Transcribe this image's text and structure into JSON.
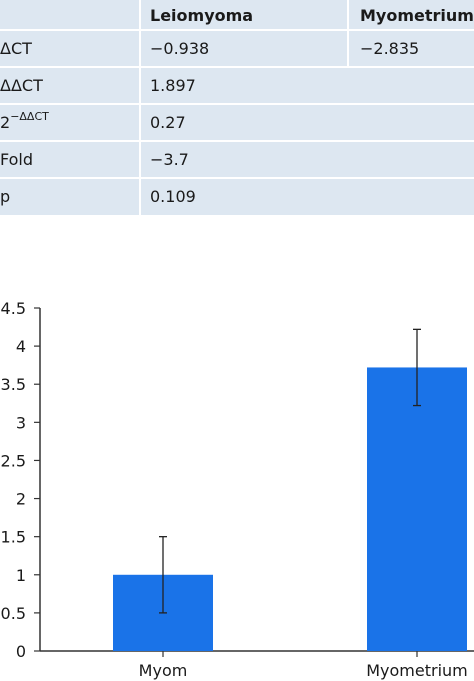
{
  "table": {
    "headers": [
      "",
      "Leiomyoma",
      "Myometrium"
    ],
    "rows": [
      {
        "label_main": "ΔCT",
        "label_sup": "",
        "leiomyoma": "−0.938",
        "myometrium": "−2.835"
      },
      {
        "label_main": "ΔΔCT",
        "label_sup": "",
        "leiomyoma": "1.897",
        "myometrium": ""
      },
      {
        "label_main": "2",
        "label_sup": "−ΔΔCT",
        "leiomyoma": "0.27",
        "myometrium": ""
      },
      {
        "label_main": "Fold",
        "label_sup": "",
        "leiomyoma": "−3.7",
        "myometrium": ""
      },
      {
        "label_main": "p",
        "label_sup": "",
        "leiomyoma": "0.109",
        "myometrium": ""
      }
    ]
  },
  "chart_data": {
    "type": "bar",
    "categories": [
      "Myom",
      "Myometrium"
    ],
    "values": [
      1.0,
      3.72
    ],
    "error_low": [
      0.5,
      3.22
    ],
    "error_high": [
      1.5,
      4.22
    ],
    "ylim": [
      0,
      4.5
    ],
    "yticks": [
      0,
      0.5,
      1,
      1.5,
      2,
      2.5,
      3,
      3.5,
      4,
      4.5
    ],
    "ytick_labels": [
      "0",
      "0.5",
      "1",
      "1.5",
      "2",
      "2.5",
      "3",
      "3.5",
      "4",
      "4.5"
    ],
    "title": "",
    "xlabel": "",
    "ylabel": "",
    "grid": false,
    "bar_color": "#1a73e8"
  }
}
